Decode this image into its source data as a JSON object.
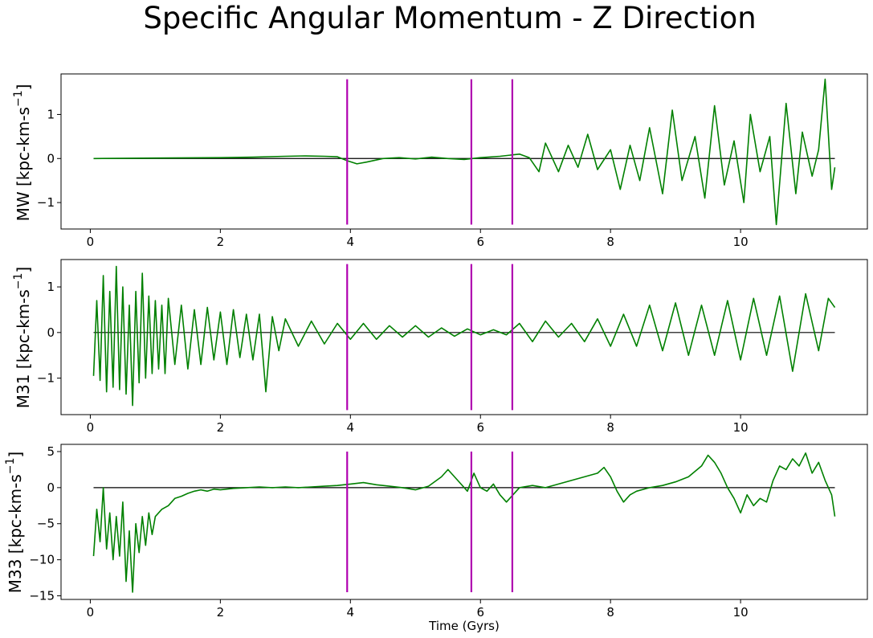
{
  "figure": {
    "title": "Specific Angular Momentum - Z Direction"
  },
  "colors": {
    "series": "#008000",
    "event_lines": "#b000b0",
    "zero_line": "#000000",
    "axes": "#000000",
    "background": "#ffffff"
  },
  "chart_data": [
    {
      "type": "line",
      "ylabel": "MW [kpc-km-s$^{-1}$]",
      "ylabel_text": "MW [kpc-km-s",
      "ylabel_sup": "−1",
      "ylabel_close": "]",
      "xlabel": "",
      "xlim": [
        -0.45,
        11.95
      ],
      "ylim": [
        -1.6,
        1.92
      ],
      "xticks": [
        0,
        2,
        4,
        6,
        8,
        10
      ],
      "xtick_labels": [
        "0",
        "2",
        "4",
        "6",
        "8",
        "10"
      ],
      "yticks": [
        -1,
        0,
        1
      ],
      "ytick_labels": [
        "−1",
        "0",
        "1"
      ],
      "vlines": [
        3.95,
        5.86,
        6.49
      ],
      "vline_range": [
        -1.5,
        1.8
      ],
      "hline": 0,
      "series": {
        "x": [
          0.05,
          1.0,
          2.0,
          2.5,
          3.0,
          3.3,
          3.6,
          3.8,
          3.95,
          4.1,
          4.25,
          4.5,
          4.75,
          5.0,
          5.25,
          5.5,
          5.75,
          6.0,
          6.3,
          6.6,
          6.75,
          6.9,
          7.0,
          7.2,
          7.35,
          7.5,
          7.65,
          7.8,
          8.0,
          8.15,
          8.3,
          8.45,
          8.6,
          8.8,
          8.95,
          9.1,
          9.3,
          9.45,
          9.6,
          9.75,
          9.9,
          10.05,
          10.15,
          10.3,
          10.45,
          10.55,
          10.7,
          10.85,
          10.95,
          11.1,
          11.2,
          11.3,
          11.4,
          11.45
        ],
        "y": [
          0.0,
          0.01,
          0.02,
          0.03,
          0.05,
          0.06,
          0.05,
          0.04,
          -0.05,
          -0.12,
          -0.08,
          0.0,
          0.02,
          -0.01,
          0.03,
          0.0,
          -0.02,
          0.02,
          0.05,
          0.1,
          0.02,
          -0.3,
          0.35,
          -0.3,
          0.3,
          -0.2,
          0.55,
          -0.25,
          0.2,
          -0.7,
          0.3,
          -0.5,
          0.7,
          -0.8,
          1.1,
          -0.5,
          0.5,
          -0.9,
          1.2,
          -0.6,
          0.4,
          -1.0,
          1.0,
          -0.3,
          0.5,
          -1.5,
          1.25,
          -0.8,
          0.6,
          -0.4,
          0.2,
          1.8,
          -0.7,
          -0.2
        ]
      }
    },
    {
      "type": "line",
      "ylabel": "M31 [kpc-km-s$^{-1}$]",
      "ylabel_text": "M31 [kpc-km-s",
      "ylabel_sup": "−1",
      "ylabel_close": "]",
      "xlabel": "",
      "xlim": [
        -0.45,
        11.95
      ],
      "ylim": [
        -1.8,
        1.6
      ],
      "xticks": [
        0,
        2,
        4,
        6,
        8,
        10
      ],
      "xtick_labels": [
        "0",
        "2",
        "4",
        "6",
        "8",
        "10"
      ],
      "yticks": [
        -1,
        0,
        1
      ],
      "ytick_labels": [
        "−1",
        "0",
        "1"
      ],
      "vlines": [
        3.95,
        5.86,
        6.49
      ],
      "vline_range": [
        -1.7,
        1.5
      ],
      "hline": 0,
      "series": {
        "x": [
          0.05,
          0.1,
          0.15,
          0.2,
          0.25,
          0.3,
          0.35,
          0.4,
          0.45,
          0.5,
          0.55,
          0.6,
          0.65,
          0.7,
          0.75,
          0.8,
          0.85,
          0.9,
          0.95,
          1.0,
          1.05,
          1.1,
          1.15,
          1.2,
          1.3,
          1.4,
          1.5,
          1.6,
          1.7,
          1.8,
          1.9,
          2.0,
          2.1,
          2.2,
          2.3,
          2.4,
          2.5,
          2.6,
          2.7,
          2.8,
          2.9,
          3.0,
          3.2,
          3.4,
          3.6,
          3.8,
          4.0,
          4.2,
          4.4,
          4.6,
          4.8,
          5.0,
          5.2,
          5.4,
          5.6,
          5.8,
          6.0,
          6.2,
          6.4,
          6.6,
          6.8,
          7.0,
          7.2,
          7.4,
          7.6,
          7.8,
          8.0,
          8.2,
          8.4,
          8.6,
          8.8,
          9.0,
          9.2,
          9.4,
          9.6,
          9.8,
          10.0,
          10.2,
          10.4,
          10.6,
          10.8,
          11.0,
          11.2,
          11.35,
          11.45
        ],
        "y": [
          -0.95,
          0.7,
          -1.05,
          1.25,
          -1.3,
          0.9,
          -1.2,
          1.45,
          -1.25,
          1.0,
          -1.35,
          0.6,
          -1.6,
          0.9,
          -1.1,
          1.3,
          -1.0,
          0.8,
          -0.9,
          0.7,
          -0.8,
          0.6,
          -0.9,
          0.75,
          -0.7,
          0.6,
          -0.8,
          0.5,
          -0.7,
          0.55,
          -0.6,
          0.45,
          -0.7,
          0.5,
          -0.55,
          0.4,
          -0.6,
          0.4,
          -1.3,
          0.35,
          -0.4,
          0.3,
          -0.3,
          0.25,
          -0.25,
          0.2,
          -0.15,
          0.2,
          -0.15,
          0.15,
          -0.1,
          0.15,
          -0.1,
          0.1,
          -0.08,
          0.08,
          -0.05,
          0.06,
          -0.05,
          0.2,
          -0.2,
          0.25,
          -0.1,
          0.2,
          -0.2,
          0.3,
          -0.3,
          0.4,
          -0.3,
          0.6,
          -0.4,
          0.65,
          -0.5,
          0.6,
          -0.5,
          0.7,
          -0.6,
          0.75,
          -0.5,
          0.8,
          -0.85,
          0.85,
          -0.4,
          0.75,
          0.55
        ]
      }
    },
    {
      "type": "line",
      "ylabel": "M33 [kpc-km-s$^{-1}$]",
      "ylabel_text": "M33 [kpc-km-s",
      "ylabel_sup": "−1",
      "ylabel_close": "]",
      "xlabel": "Time (Gyrs)",
      "xlim": [
        -0.45,
        11.95
      ],
      "ylim": [
        -15.5,
        6.0
      ],
      "xticks": [
        0,
        2,
        4,
        6,
        8,
        10
      ],
      "xtick_labels": [
        "0",
        "2",
        "4",
        "6",
        "8",
        "10"
      ],
      "yticks": [
        -15,
        -10,
        -5,
        0,
        5
      ],
      "ytick_labels": [
        "−15",
        "−10",
        "−5",
        "0",
        "5"
      ],
      "vlines": [
        3.95,
        5.86,
        6.49
      ],
      "vline_range": [
        -14.5,
        5.0
      ],
      "hline": 0,
      "series": {
        "x": [
          0.05,
          0.1,
          0.15,
          0.2,
          0.25,
          0.3,
          0.35,
          0.4,
          0.45,
          0.5,
          0.55,
          0.6,
          0.65,
          0.7,
          0.75,
          0.8,
          0.85,
          0.9,
          0.95,
          1.0,
          1.1,
          1.2,
          1.3,
          1.4,
          1.5,
          1.6,
          1.7,
          1.8,
          1.9,
          2.0,
          2.2,
          2.4,
          2.6,
          2.8,
          3.0,
          3.2,
          3.4,
          3.6,
          3.8,
          4.0,
          4.2,
          4.4,
          4.6,
          4.8,
          5.0,
          5.2,
          5.4,
          5.5,
          5.6,
          5.7,
          5.8,
          5.9,
          6.0,
          6.1,
          6.2,
          6.3,
          6.4,
          6.5,
          6.6,
          6.8,
          7.0,
          7.2,
          7.4,
          7.6,
          7.8,
          7.9,
          8.0,
          8.1,
          8.2,
          8.3,
          8.4,
          8.6,
          8.8,
          9.0,
          9.2,
          9.4,
          9.5,
          9.6,
          9.7,
          9.8,
          9.9,
          10.0,
          10.1,
          10.2,
          10.3,
          10.4,
          10.5,
          10.6,
          10.7,
          10.8,
          10.9,
          11.0,
          11.1,
          11.2,
          11.3,
          11.4,
          11.45
        ],
        "y": [
          -9.5,
          -3.0,
          -7.5,
          0.0,
          -8.5,
          -3.5,
          -10.0,
          -4.0,
          -9.5,
          -2.0,
          -13.0,
          -6.0,
          -14.5,
          -5.0,
          -9.0,
          -4.0,
          -8.0,
          -3.5,
          -6.5,
          -4.0,
          -3.0,
          -2.5,
          -1.5,
          -1.2,
          -0.8,
          -0.5,
          -0.3,
          -0.5,
          -0.2,
          -0.3,
          -0.1,
          0.0,
          0.1,
          0.0,
          0.1,
          0.0,
          0.1,
          0.2,
          0.3,
          0.5,
          0.7,
          0.4,
          0.2,
          0.0,
          -0.3,
          0.2,
          1.5,
          2.5,
          1.5,
          0.5,
          -0.5,
          2.0,
          0.0,
          -0.5,
          0.5,
          -1.0,
          -2.0,
          -1.0,
          0.0,
          0.3,
          0.0,
          0.5,
          1.0,
          1.5,
          2.0,
          2.8,
          1.5,
          -0.5,
          -2.0,
          -1.0,
          -0.5,
          0.0,
          0.3,
          0.8,
          1.5,
          3.0,
          4.5,
          3.5,
          2.0,
          0.0,
          -1.5,
          -3.5,
          -1.0,
          -2.5,
          -1.5,
          -2.0,
          1.0,
          3.0,
          2.5,
          4.0,
          3.0,
          4.8,
          2.0,
          3.5,
          1.0,
          -1.0,
          -4.0
        ]
      }
    }
  ]
}
